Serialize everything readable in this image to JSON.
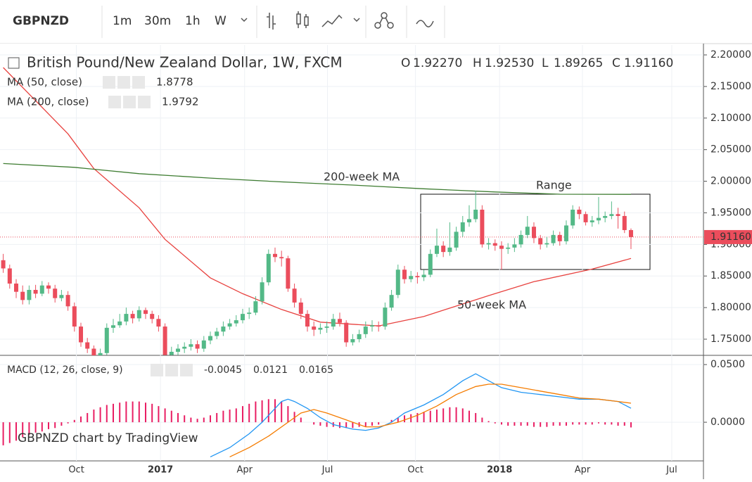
{
  "toolbar": {
    "symbol": "GBPNZD",
    "intervals": [
      "1m",
      "30m",
      "1h",
      "W"
    ]
  },
  "chart_data": [
    {
      "type": "candlestick",
      "title": "British Pound/New Zealand Dollar, 1W, FXCM",
      "ohlc_legend": [
        {
          "key": "O",
          "value": "1.92270"
        },
        {
          "key": "H",
          "value": "1.92530"
        },
        {
          "key": "L",
          "value": "1.89265"
        },
        {
          "key": "C",
          "value": "1.91160"
        }
      ],
      "last_price_label": "1.91160",
      "xlim": [
        -0.5,
        108.2
      ],
      "xticks": [
        {
          "value": 11.3,
          "label": "Oct"
        },
        {
          "value": 24.3,
          "label": "2017"
        },
        {
          "value": 37.3,
          "label": "Apr"
        },
        {
          "value": 50.1,
          "label": "Jul"
        },
        {
          "value": 63.7,
          "label": "Oct"
        },
        {
          "value": 76.7,
          "label": "2018"
        },
        {
          "value": 89.5,
          "label": "Apr"
        },
        {
          "value": 103.3,
          "label": "Jul"
        }
      ],
      "ylim": [
        1.7244,
        2.2145
      ],
      "yticks": [
        {
          "value": 1.75,
          "label": "1.75000"
        },
        {
          "value": 1.8,
          "label": "1.80000"
        },
        {
          "value": 1.85,
          "label": "1.85000"
        },
        {
          "value": 1.9,
          "label": "1.90000"
        },
        {
          "value": 1.95,
          "label": "1.95000"
        },
        {
          "value": 2.0,
          "label": "2.00000"
        },
        {
          "value": 2.05,
          "label": "2.05000"
        },
        {
          "value": 2.1,
          "label": "2.10000"
        },
        {
          "value": 2.15,
          "label": "2.15000"
        },
        {
          "value": 2.2,
          "label": "2.20000"
        }
      ],
      "grid": true,
      "up_color": "#53b987",
      "down_color": "#eb4d5c",
      "open": [
        1.875,
        1.862,
        1.838,
        1.825,
        1.812,
        1.828,
        1.822,
        1.835,
        1.83,
        1.815,
        1.82,
        1.802,
        1.77,
        1.745,
        1.735,
        1.722,
        1.728,
        1.768,
        1.772,
        1.778,
        1.79,
        1.783,
        1.796,
        1.79,
        1.782,
        1.77,
        1.725,
        1.73,
        1.735,
        1.738,
        1.742,
        1.735,
        1.748,
        1.755,
        1.762,
        1.77,
        1.775,
        1.78,
        1.79,
        1.792,
        1.81,
        1.84,
        1.885,
        1.88,
        1.878,
        1.83,
        1.808,
        1.79,
        1.77,
        1.765,
        1.768,
        1.77,
        1.782,
        1.776,
        1.745,
        1.75,
        1.758,
        1.77,
        1.772,
        1.77,
        1.8,
        1.82,
        1.86,
        1.845,
        1.85,
        1.848,
        1.852,
        1.885,
        1.898,
        1.888,
        1.895,
        1.92,
        1.935,
        1.94,
        1.955,
        1.9,
        1.902,
        1.898,
        1.893,
        1.895,
        1.9,
        1.915,
        1.928,
        1.91,
        1.9,
        1.902,
        1.915,
        1.905,
        1.93,
        1.955,
        1.948,
        1.935,
        1.938,
        1.942,
        1.945,
        1.948,
        1.945,
        1.9227
      ],
      "high": [
        1.885,
        1.868,
        1.845,
        1.835,
        1.835,
        1.836,
        1.842,
        1.84,
        1.836,
        1.828,
        1.826,
        1.808,
        1.776,
        1.752,
        1.74,
        1.735,
        1.775,
        1.782,
        1.79,
        1.8,
        1.795,
        1.802,
        1.8,
        1.795,
        1.788,
        1.775,
        1.738,
        1.742,
        1.745,
        1.75,
        1.748,
        1.755,
        1.762,
        1.768,
        1.778,
        1.782,
        1.788,
        1.798,
        1.8,
        1.818,
        1.848,
        1.892,
        1.895,
        1.89,
        1.882,
        1.838,
        1.815,
        1.796,
        1.778,
        1.775,
        1.778,
        1.79,
        1.792,
        1.78,
        1.758,
        1.765,
        1.778,
        1.78,
        1.778,
        1.808,
        1.828,
        1.868,
        1.866,
        1.858,
        1.856,
        1.86,
        1.892,
        1.925,
        1.905,
        1.935,
        1.928,
        1.945,
        1.962,
        1.985,
        1.962,
        1.91,
        1.908,
        1.905,
        1.902,
        1.91,
        1.922,
        1.945,
        1.935,
        1.915,
        1.912,
        1.922,
        1.92,
        1.938,
        1.962,
        1.96,
        1.952,
        1.945,
        1.975,
        1.952,
        1.968,
        1.958,
        1.952,
        1.9253
      ],
      "low": [
        1.855,
        1.83,
        1.815,
        1.805,
        1.805,
        1.815,
        1.818,
        1.822,
        1.808,
        1.81,
        1.795,
        1.762,
        1.738,
        1.728,
        1.715,
        1.718,
        1.725,
        1.76,
        1.768,
        1.772,
        1.775,
        1.778,
        1.782,
        1.775,
        1.762,
        1.718,
        1.72,
        1.725,
        1.728,
        1.732,
        1.728,
        1.73,
        1.742,
        1.75,
        1.755,
        1.765,
        1.77,
        1.775,
        1.782,
        1.788,
        1.805,
        1.835,
        1.872,
        1.865,
        1.825,
        1.8,
        1.782,
        1.762,
        1.755,
        1.758,
        1.76,
        1.765,
        1.77,
        1.738,
        1.74,
        1.745,
        1.752,
        1.762,
        1.762,
        1.765,
        1.795,
        1.815,
        1.838,
        1.84,
        1.838,
        1.842,
        1.848,
        1.88,
        1.88,
        1.882,
        1.89,
        1.912,
        1.928,
        1.935,
        1.895,
        1.892,
        1.89,
        1.86,
        1.885,
        1.888,
        1.895,
        1.91,
        1.902,
        1.892,
        1.895,
        1.898,
        1.898,
        1.9,
        1.925,
        1.94,
        1.93,
        1.928,
        1.932,
        1.935,
        1.94,
        1.925,
        1.918,
        1.89265
      ],
      "close": [
        1.862,
        1.838,
        1.825,
        1.812,
        1.828,
        1.822,
        1.835,
        1.83,
        1.815,
        1.82,
        1.802,
        1.77,
        1.745,
        1.735,
        1.722,
        1.728,
        1.768,
        1.772,
        1.778,
        1.79,
        1.783,
        1.796,
        1.79,
        1.782,
        1.77,
        1.725,
        1.73,
        1.735,
        1.738,
        1.742,
        1.735,
        1.748,
        1.755,
        1.762,
        1.77,
        1.775,
        1.78,
        1.79,
        1.792,
        1.81,
        1.84,
        1.885,
        1.88,
        1.878,
        1.83,
        1.808,
        1.79,
        1.77,
        1.765,
        1.768,
        1.77,
        1.782,
        1.776,
        1.745,
        1.75,
        1.758,
        1.77,
        1.772,
        1.77,
        1.8,
        1.82,
        1.86,
        1.845,
        1.85,
        1.848,
        1.852,
        1.885,
        1.898,
        1.888,
        1.895,
        1.92,
        1.935,
        1.94,
        1.955,
        1.9,
        1.902,
        1.898,
        1.893,
        1.895,
        1.9,
        1.915,
        1.928,
        1.91,
        1.9,
        1.902,
        1.915,
        1.905,
        1.93,
        1.955,
        1.948,
        1.935,
        1.938,
        1.942,
        1.945,
        1.948,
        1.945,
        1.9227,
        1.9116
      ],
      "lines": [
        {
          "name": "MA (50, close)",
          "value_label": "1.8778",
          "color": "#e8423f",
          "x": [
            0,
            10,
            14,
            21,
            25,
            32,
            37,
            43,
            49,
            58,
            65,
            75,
            82,
            91,
            97
          ],
          "values": [
            2.18,
            2.075,
            2.02,
            1.958,
            1.908,
            1.847,
            1.822,
            1.797,
            1.777,
            1.771,
            1.786,
            1.819,
            1.841,
            1.861,
            1.8778
          ]
        },
        {
          "name": "MA (200, close)",
          "value_label": "1.9792",
          "color": "#3f7d32",
          "x": [
            0,
            11,
            21,
            32,
            43,
            54,
            65,
            76,
            86,
            97
          ],
          "values": [
            2.028,
            2.022,
            2.012,
            2.005,
            1.999,
            1.994,
            1.988,
            1.983,
            1.9795,
            1.9792
          ]
        }
      ],
      "annotations": [
        "200-week MA",
        "Range",
        "50-week MA"
      ]
    },
    {
      "type": "macd",
      "title": "MACD (12, 26, close, 9)",
      "ylim": [
        -0.0335,
        0.058
      ],
      "yticks": [
        {
          "value": 0.05,
          "label": "0.0500"
        },
        {
          "value": 0,
          "label": "0.0000"
        }
      ],
      "histogram": {
        "color": "#e91e63",
        "value_label": "-0.0045",
        "values": [
          -0.02,
          -0.018,
          -0.016,
          -0.013,
          -0.011,
          -0.009,
          -0.008,
          -0.006,
          -0.005,
          -0.003,
          -0.001,
          0.002,
          0.005,
          0.008,
          0.011,
          0.013,
          0.015,
          0.016,
          0.017,
          0.018,
          0.018,
          0.018,
          0.017,
          0.016,
          0.014,
          0.012,
          0.01,
          0.008,
          0.006,
          0.004,
          0.003,
          0.004,
          0.006,
          0.008,
          0.01,
          0.011,
          0.012,
          0.014,
          0.016,
          0.018,
          0.019,
          0.02,
          0.02,
          0.018,
          0.014,
          0.009,
          0.004,
          0.0,
          -0.002,
          -0.003,
          -0.004,
          -0.004,
          -0.005,
          -0.005,
          -0.005,
          -0.004,
          -0.004,
          -0.003,
          -0.002,
          0.0,
          0.002,
          0.004,
          0.006,
          0.007,
          0.008,
          0.009,
          0.01,
          0.011,
          0.012,
          0.013,
          0.013,
          0.012,
          0.01,
          0.008,
          0.004,
          0.001,
          -0.001,
          -0.002,
          -0.003,
          -0.003,
          -0.003,
          -0.003,
          -0.004,
          -0.004,
          -0.004,
          -0.003,
          -0.003,
          -0.003,
          -0.002,
          -0.002,
          -0.002,
          -0.002,
          -0.001,
          -0.002,
          -0.002,
          -0.003,
          -0.003,
          -0.0045
        ]
      },
      "lines": [
        {
          "color": "#2196f3",
          "value_label": "0.0121",
          "x": [
            32,
            35,
            38,
            40,
            42,
            43,
            44,
            45,
            47,
            49,
            51,
            54,
            56,
            58,
            60,
            62,
            65,
            68,
            71,
            73,
            75,
            77,
            80,
            83,
            86,
            89,
            92,
            95,
            97
          ],
          "values": [
            -0.03,
            -0.022,
            -0.01,
            0.0,
            0.012,
            0.018,
            0.02,
            0.018,
            0.012,
            0.004,
            -0.002,
            -0.006,
            -0.007,
            -0.005,
            0.0,
            0.008,
            0.015,
            0.024,
            0.036,
            0.042,
            0.036,
            0.03,
            0.026,
            0.024,
            0.022,
            0.02,
            0.02,
            0.018,
            0.0121
          ]
        },
        {
          "color": "#f57c00",
          "value_label": "0.0165",
          "x": [
            35,
            38,
            41,
            44,
            46,
            48,
            50,
            53,
            56,
            58,
            61,
            64,
            67,
            70,
            73,
            75,
            77,
            80,
            83,
            86,
            89,
            92,
            95,
            97
          ],
          "values": [
            -0.03,
            -0.022,
            -0.012,
            0.0,
            0.008,
            0.011,
            0.008,
            0.002,
            -0.004,
            -0.004,
            0.0,
            0.006,
            0.014,
            0.024,
            0.031,
            0.033,
            0.033,
            0.03,
            0.027,
            0.024,
            0.021,
            0.02,
            0.018,
            0.0165
          ]
        }
      ],
      "watermark": "GBPNZD chart by TradingView"
    }
  ]
}
